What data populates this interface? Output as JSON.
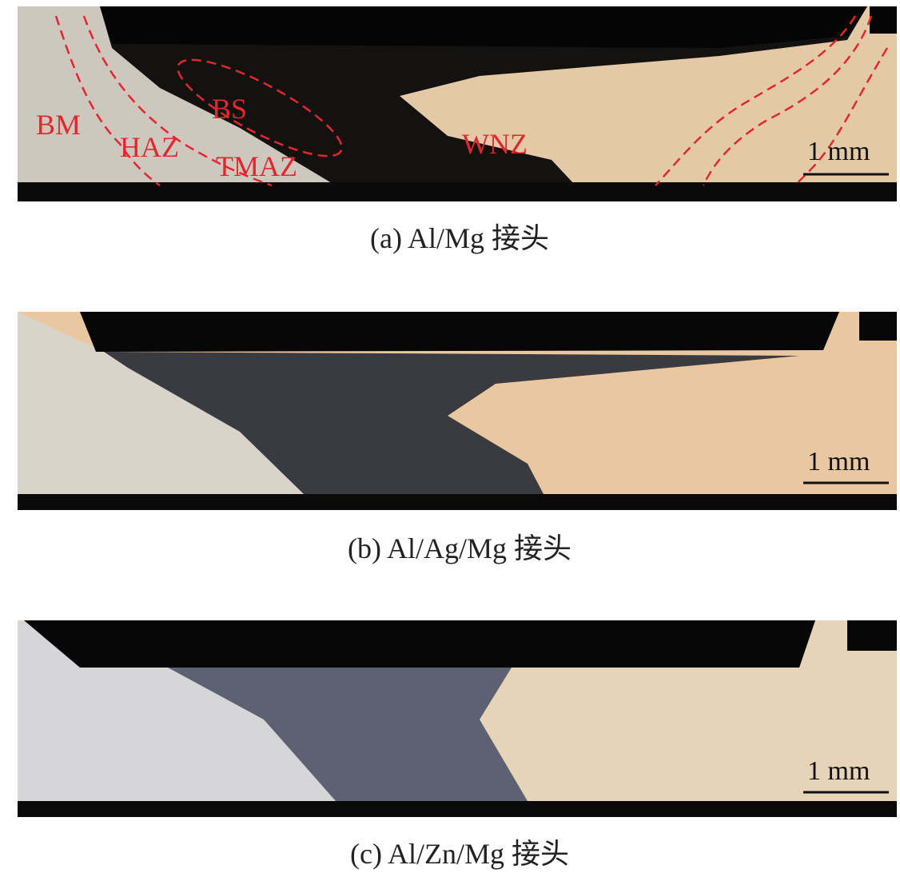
{
  "panels": [
    {
      "caption": "(a) Al/Mg 接头",
      "scale_bar": "1 mm",
      "labels": [
        "BM",
        "HAZ",
        "BS",
        "TMAZ",
        "WNZ"
      ]
    },
    {
      "caption": "(b) Al/Ag/Mg 接头",
      "scale_bar": "1 mm"
    },
    {
      "caption": "(c) Al/Zn/Mg 接头",
      "scale_bar": "1 mm"
    }
  ]
}
